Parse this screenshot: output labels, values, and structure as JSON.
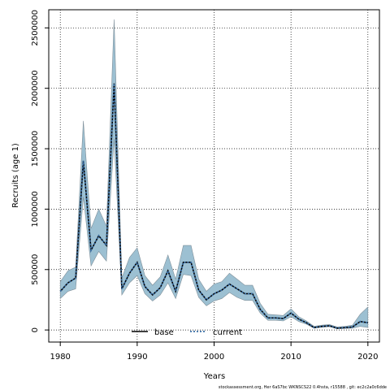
{
  "chart_data": {
    "type": "area",
    "xlabel": "Years",
    "ylabel": "Recruits (age 1)",
    "xlim": [
      1978.5,
      2021.5
    ],
    "ylim": [
      -100000,
      2650000
    ],
    "x_ticks": [
      1980,
      1990,
      2000,
      2010,
      2020
    ],
    "y_ticks": [
      0,
      500000,
      1000000,
      1500000,
      2000000,
      2500000
    ],
    "x_tick_labels": [
      "1980",
      "1990",
      "2000",
      "2010",
      "2020"
    ],
    "y_tick_labels": [
      "0",
      "500000",
      "1000000",
      "1500000",
      "2000000",
      "2500000"
    ],
    "grid": true,
    "legend_position": "bottom-center",
    "legend": [
      {
        "label": "base",
        "style": "solid",
        "color": "#000000"
      },
      {
        "label": "current",
        "style": "dotted",
        "color": "#3a6ea5"
      }
    ],
    "band_color": "#9cc0d2",
    "x": [
      1980,
      1981,
      1982,
      1983,
      1984,
      1985,
      1986,
      1987,
      1988,
      1989,
      1990,
      1991,
      1992,
      1993,
      1994,
      1995,
      1996,
      1997,
      1998,
      1999,
      2000,
      2001,
      2002,
      2003,
      2004,
      2005,
      2006,
      2007,
      2008,
      2009,
      2010,
      2011,
      2012,
      2013,
      2014,
      2015,
      2016,
      2017,
      2018,
      2019,
      2020
    ],
    "series": [
      {
        "name": "base",
        "values": [
          320000,
          390000,
          430000,
          1400000,
          660000,
          780000,
          700000,
          2040000,
          340000,
          470000,
          560000,
          360000,
          290000,
          350000,
          490000,
          320000,
          560000,
          560000,
          330000,
          250000,
          300000,
          330000,
          380000,
          340000,
          300000,
          300000,
          170000,
          100000,
          100000,
          95000,
          140000,
          90000,
          60000,
          20000,
          30000,
          35000,
          15000,
          20000,
          25000,
          70000,
          60000
        ]
      },
      {
        "name": "current",
        "values": [
          320000,
          390000,
          430000,
          1400000,
          660000,
          780000,
          700000,
          2040000,
          340000,
          470000,
          560000,
          360000,
          290000,
          350000,
          490000,
          320000,
          560000,
          560000,
          330000,
          250000,
          300000,
          330000,
          380000,
          340000,
          300000,
          300000,
          170000,
          100000,
          100000,
          95000,
          140000,
          90000,
          60000,
          20000,
          30000,
          35000,
          15000,
          20000,
          25000,
          70000,
          60000
        ]
      }
    ],
    "band_upper": [
      400000,
      490000,
      520000,
      1730000,
      840000,
      1000000,
      860000,
      2570000,
      430000,
      600000,
      680000,
      450000,
      370000,
      440000,
      620000,
      420000,
      700000,
      700000,
      420000,
      320000,
      380000,
      400000,
      470000,
      420000,
      370000,
      370000,
      220000,
      130000,
      125000,
      120000,
      175000,
      110000,
      75000,
      30000,
      40000,
      45000,
      25000,
      30000,
      40000,
      130000,
      190000
    ],
    "band_lower": [
      260000,
      320000,
      340000,
      1100000,
      530000,
      650000,
      570000,
      1580000,
      290000,
      390000,
      450000,
      300000,
      240000,
      290000,
      390000,
      260000,
      460000,
      450000,
      270000,
      200000,
      240000,
      260000,
      310000,
      270000,
      245000,
      245000,
      140000,
      80000,
      80000,
      75000,
      110000,
      70000,
      48000,
      15000,
      22000,
      27000,
      10000,
      12000,
      15000,
      30000,
      20000
    ]
  },
  "footer": "stockassessment.org, Her 6aS7bc WKNSCS22 0.4hsta, r15588 , git: ec2c2a0c6dde"
}
